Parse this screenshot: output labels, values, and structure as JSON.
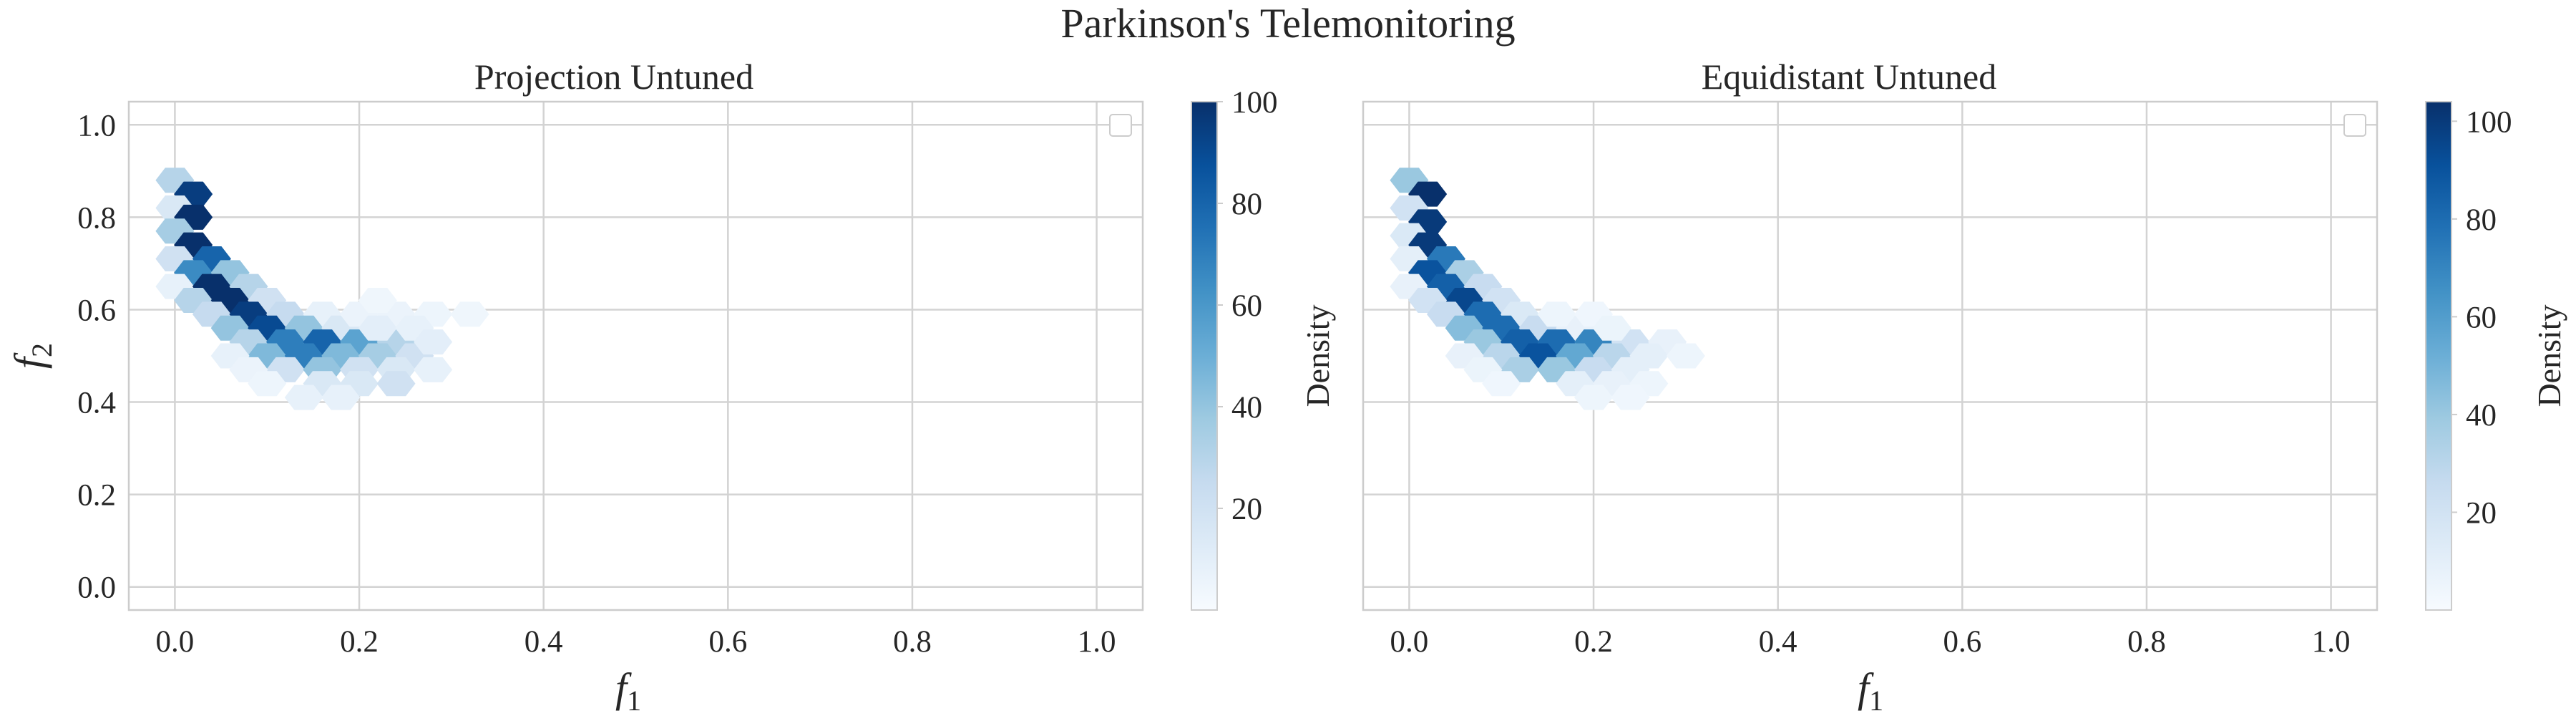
{
  "suptitle": "Parkinson's Telemonitoring",
  "colors": {
    "cmap_low": "#f7fbff",
    "cmap_high": "#08306b",
    "grid": "#d3d3d3",
    "frame": "#cccccc"
  },
  "chart_data": [
    {
      "type": "heatmap",
      "subtype": "hexbin",
      "title": "Projection Untuned",
      "xlabel": "f",
      "xlabel_sub": "1",
      "ylabel": "f",
      "ylabel_sub": "2",
      "xlim": [
        -0.05,
        1.05
      ],
      "ylim": [
        -0.05,
        1.05
      ],
      "xticks": [
        "0.0",
        "0.2",
        "0.4",
        "0.6",
        "0.8",
        "1.0"
      ],
      "yticks": [
        "0.0",
        "0.2",
        "0.4",
        "0.6",
        "0.8",
        "1.0"
      ],
      "grid": true,
      "legend": "top-right, empty",
      "colorbar": {
        "label": "Density",
        "min": 0,
        "max": 100,
        "ticks": [
          "20",
          "40",
          "60",
          "80",
          "100"
        ]
      },
      "cells": [
        [
          0.0,
          0.88,
          30
        ],
        [
          0.02,
          0.85,
          95
        ],
        [
          0.0,
          0.82,
          15
        ],
        [
          0.02,
          0.8,
          100
        ],
        [
          0.0,
          0.77,
          35
        ],
        [
          0.02,
          0.74,
          100
        ],
        [
          0.0,
          0.71,
          20
        ],
        [
          0.04,
          0.71,
          80
        ],
        [
          0.02,
          0.68,
          65
        ],
        [
          0.06,
          0.68,
          40
        ],
        [
          0.0,
          0.65,
          8
        ],
        [
          0.04,
          0.65,
          100
        ],
        [
          0.08,
          0.65,
          30
        ],
        [
          0.02,
          0.62,
          30
        ],
        [
          0.06,
          0.62,
          100
        ],
        [
          0.1,
          0.62,
          20
        ],
        [
          0.04,
          0.59,
          25
        ],
        [
          0.08,
          0.59,
          95
        ],
        [
          0.12,
          0.59,
          25
        ],
        [
          0.16,
          0.59,
          8
        ],
        [
          0.06,
          0.56,
          40
        ],
        [
          0.1,
          0.56,
          90
        ],
        [
          0.14,
          0.56,
          40
        ],
        [
          0.18,
          0.56,
          15
        ],
        [
          0.08,
          0.53,
          30
        ],
        [
          0.12,
          0.53,
          70
        ],
        [
          0.16,
          0.53,
          80
        ],
        [
          0.2,
          0.53,
          55
        ],
        [
          0.24,
          0.53,
          30
        ],
        [
          0.1,
          0.5,
          45
        ],
        [
          0.14,
          0.5,
          70
        ],
        [
          0.18,
          0.5,
          45
        ],
        [
          0.22,
          0.5,
          35
        ],
        [
          0.26,
          0.5,
          20
        ],
        [
          0.12,
          0.47,
          20
        ],
        [
          0.16,
          0.47,
          40
        ],
        [
          0.2,
          0.47,
          20
        ],
        [
          0.24,
          0.47,
          15
        ],
        [
          0.16,
          0.44,
          15
        ],
        [
          0.2,
          0.44,
          15
        ],
        [
          0.24,
          0.44,
          20
        ],
        [
          0.14,
          0.41,
          8
        ],
        [
          0.18,
          0.41,
          8
        ],
        [
          0.2,
          0.59,
          6
        ],
        [
          0.24,
          0.59,
          6
        ],
        [
          0.28,
          0.59,
          5
        ],
        [
          0.32,
          0.59,
          4
        ],
        [
          0.22,
          0.56,
          10
        ],
        [
          0.26,
          0.56,
          8
        ],
        [
          0.28,
          0.53,
          10
        ],
        [
          0.28,
          0.47,
          8
        ],
        [
          0.22,
          0.62,
          4
        ],
        [
          0.06,
          0.5,
          8
        ],
        [
          0.08,
          0.47,
          6
        ],
        [
          0.1,
          0.44,
          5
        ]
      ]
    },
    {
      "type": "heatmap",
      "subtype": "hexbin",
      "title": "Equidistant Untuned",
      "xlabel": "f",
      "xlabel_sub": "1",
      "xlim": [
        -0.05,
        1.05
      ],
      "ylim": [
        -0.05,
        1.05
      ],
      "xticks": [
        "0.0",
        "0.2",
        "0.4",
        "0.6",
        "0.8",
        "1.0"
      ],
      "grid": true,
      "legend": "top-right, empty",
      "colorbar": {
        "label": "Density",
        "min": 0,
        "max": 104,
        "ticks": [
          "20",
          "40",
          "60",
          "80",
          "100"
        ]
      },
      "cells": [
        [
          0.0,
          0.88,
          40
        ],
        [
          0.02,
          0.85,
          104
        ],
        [
          0.0,
          0.82,
          20
        ],
        [
          0.02,
          0.79,
          100
        ],
        [
          0.0,
          0.76,
          15
        ],
        [
          0.02,
          0.74,
          100
        ],
        [
          0.0,
          0.71,
          10
        ],
        [
          0.04,
          0.71,
          75
        ],
        [
          0.02,
          0.68,
          90
        ],
        [
          0.06,
          0.68,
          35
        ],
        [
          0.0,
          0.65,
          8
        ],
        [
          0.04,
          0.65,
          85
        ],
        [
          0.08,
          0.65,
          25
        ],
        [
          0.06,
          0.62,
          95
        ],
        [
          0.02,
          0.62,
          20
        ],
        [
          0.1,
          0.62,
          20
        ],
        [
          0.04,
          0.59,
          25
        ],
        [
          0.08,
          0.59,
          80
        ],
        [
          0.12,
          0.59,
          15
        ],
        [
          0.06,
          0.56,
          45
        ],
        [
          0.1,
          0.56,
          80
        ],
        [
          0.14,
          0.56,
          25
        ],
        [
          0.18,
          0.56,
          8
        ],
        [
          0.08,
          0.53,
          40
        ],
        [
          0.12,
          0.53,
          85
        ],
        [
          0.16,
          0.53,
          80
        ],
        [
          0.2,
          0.53,
          70
        ],
        [
          0.24,
          0.53,
          20
        ],
        [
          0.28,
          0.53,
          8
        ],
        [
          0.1,
          0.5,
          30
        ],
        [
          0.14,
          0.5,
          90
        ],
        [
          0.18,
          0.5,
          55
        ],
        [
          0.22,
          0.5,
          30
        ],
        [
          0.26,
          0.5,
          10
        ],
        [
          0.3,
          0.5,
          5
        ],
        [
          0.12,
          0.47,
          35
        ],
        [
          0.16,
          0.47,
          40
        ],
        [
          0.2,
          0.47,
          25
        ],
        [
          0.24,
          0.47,
          10
        ],
        [
          0.18,
          0.44,
          10
        ],
        [
          0.22,
          0.44,
          8
        ],
        [
          0.26,
          0.44,
          5
        ],
        [
          0.2,
          0.41,
          5
        ],
        [
          0.24,
          0.41,
          4
        ],
        [
          0.16,
          0.59,
          5
        ],
        [
          0.2,
          0.59,
          4
        ],
        [
          0.22,
          0.56,
          6
        ],
        [
          0.06,
          0.5,
          8
        ],
        [
          0.08,
          0.47,
          6
        ],
        [
          0.1,
          0.44,
          4
        ]
      ]
    }
  ]
}
